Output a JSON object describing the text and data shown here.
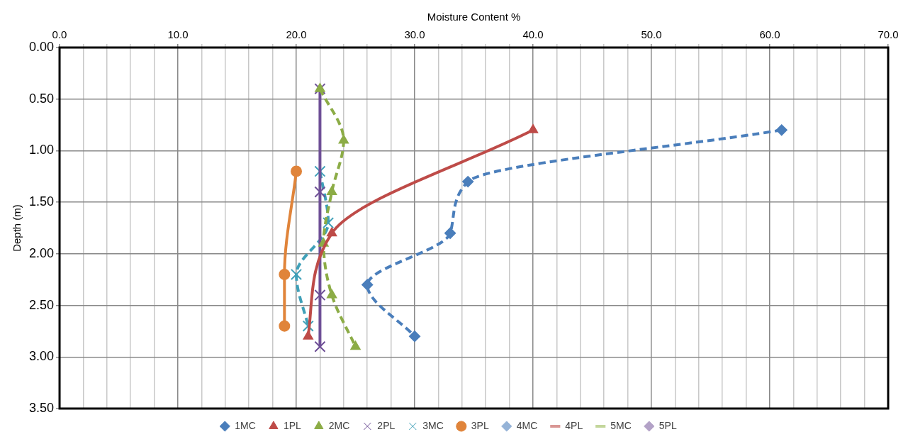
{
  "chart_data": {
    "type": "line",
    "xlabel": "Moisture Content %",
    "ylabel": "Depth (m)",
    "xlim": [
      0,
      70
    ],
    "ylim": [
      3.5,
      0
    ],
    "xticks": [
      {
        "value": 0,
        "label": "0.0"
      },
      {
        "value": 2,
        "label": null
      },
      {
        "value": 4,
        "label": null
      },
      {
        "value": 6,
        "label": null
      },
      {
        "value": 8,
        "label": null
      },
      {
        "value": 10,
        "label": "10.0"
      },
      {
        "value": 12,
        "label": null
      },
      {
        "value": 14,
        "label": null
      },
      {
        "value": 16,
        "label": null
      },
      {
        "value": 18,
        "label": null
      },
      {
        "value": 20,
        "label": "20.0"
      },
      {
        "value": 22,
        "label": null
      },
      {
        "value": 24,
        "label": null
      },
      {
        "value": 26,
        "label": null
      },
      {
        "value": 28,
        "label": null
      },
      {
        "value": 30,
        "label": "30.0"
      },
      {
        "value": 32,
        "label": null
      },
      {
        "value": 34,
        "label": null
      },
      {
        "value": 36,
        "label": null
      },
      {
        "value": 38,
        "label": null
      },
      {
        "value": 40,
        "label": "40.0"
      },
      {
        "value": 42,
        "label": null
      },
      {
        "value": 44,
        "label": null
      },
      {
        "value": 46,
        "label": null
      },
      {
        "value": 48,
        "label": null
      },
      {
        "value": 50,
        "label": "50.0"
      },
      {
        "value": 52,
        "label": null
      },
      {
        "value": 54,
        "label": null
      },
      {
        "value": 56,
        "label": null
      },
      {
        "value": 58,
        "label": null
      },
      {
        "value": 60,
        "label": "60.0"
      },
      {
        "value": 62,
        "label": null
      },
      {
        "value": 64,
        "label": null
      },
      {
        "value": 66,
        "label": null
      },
      {
        "value": 68,
        "label": null
      },
      {
        "value": 70,
        "label": "70.0"
      }
    ],
    "yticks": [
      {
        "value": 0,
        "label": "0.00"
      },
      {
        "value": 0.5,
        "label": "0.50"
      },
      {
        "value": 1,
        "label": "1.00"
      },
      {
        "value": 1.5,
        "label": "1.50"
      },
      {
        "value": 2,
        "label": "2.00"
      },
      {
        "value": 2.5,
        "label": "2.50"
      },
      {
        "value": 3,
        "label": "3.00"
      },
      {
        "value": 3.5,
        "label": "3.50"
      }
    ],
    "grid": true,
    "legend": "bottom",
    "series": [
      {
        "name": "1MC",
        "color": "#4a7ebb",
        "marker": "diamond",
        "line_style": "dashed",
        "x": [
          61,
          34.5,
          33,
          26,
          30
        ],
        "values": [
          0.8,
          1.3,
          1.8,
          2.3,
          2.8
        ]
      },
      {
        "name": "1PL",
        "color": "#be4b48",
        "marker": "triangle",
        "line_style": "solid",
        "x": [
          40,
          23,
          21
        ],
        "values": [
          0.8,
          1.8,
          2.8
        ]
      },
      {
        "name": "2MC",
        "color": "#8cac46",
        "marker": "triangle",
        "line_style": "dashed",
        "x": [
          22,
          24,
          23,
          22.3,
          23,
          25
        ],
        "values": [
          0.4,
          0.9,
          1.4,
          1.9,
          2.4,
          2.9
        ]
      },
      {
        "name": "2PL",
        "color": "#6e4f96",
        "marker": "cross",
        "line_style": "solid",
        "x": [
          22,
          22,
          22,
          22
        ],
        "values": [
          0.4,
          1.4,
          2.4,
          2.9
        ]
      },
      {
        "name": "3MC",
        "color": "#3fa0b8",
        "marker": "cross",
        "line_style": "dashed",
        "x": [
          22,
          22.7,
          20,
          21
        ],
        "values": [
          1.2,
          1.7,
          2.2,
          2.7
        ]
      },
      {
        "name": "3PL",
        "color": "#e0843a",
        "marker": "circle",
        "line_style": "solid",
        "x": [
          20,
          19,
          19
        ],
        "values": [
          1.2,
          2.2,
          2.7
        ]
      },
      {
        "name": "4MC",
        "color": "#95b3d7",
        "marker": "diamond",
        "line_style": "solid"
      },
      {
        "name": "4PL",
        "color": "#d99694",
        "marker": "none",
        "line_style": "solid"
      },
      {
        "name": "5MC",
        "color": "#c3d69b",
        "marker": "none",
        "line_style": "solid"
      },
      {
        "name": "5PL",
        "color": "#b3a2c7",
        "marker": "diamond",
        "line_style": "solid"
      }
    ]
  }
}
